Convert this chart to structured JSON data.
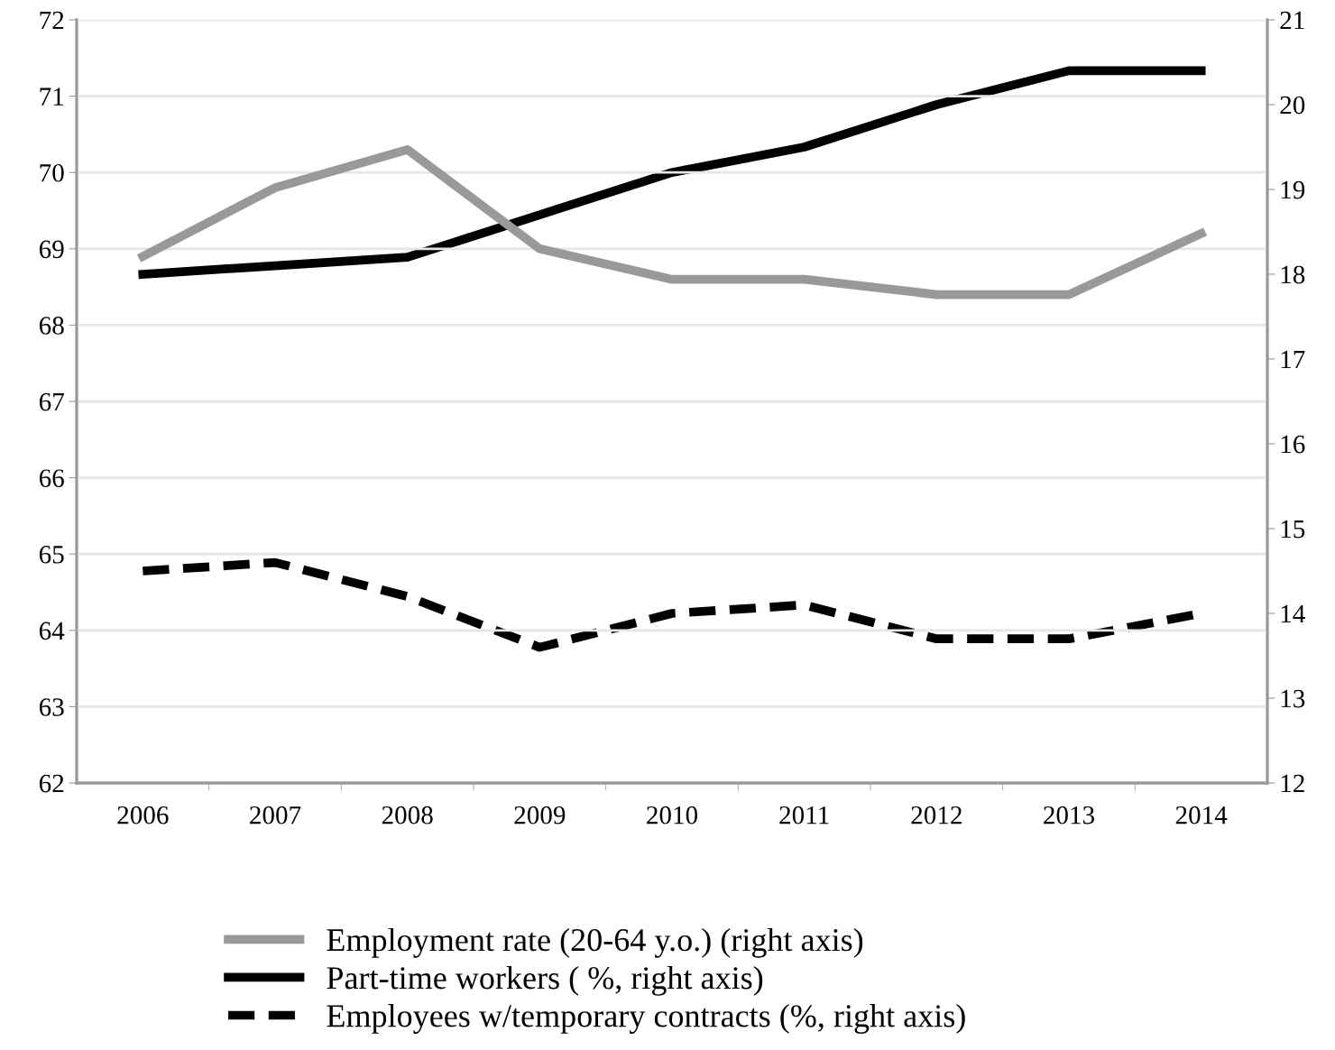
{
  "chart_data": {
    "type": "line",
    "categories": [
      "2006",
      "2007",
      "2008",
      "2009",
      "2010",
      "2011",
      "2012",
      "2013",
      "2014"
    ],
    "series": [
      {
        "name": "Employment rate (20-64 y.o.) (right axis)",
        "color": "#999999",
        "values": [
          68.9,
          69.8,
          70.3,
          69.0,
          68.6,
          68.6,
          68.4,
          68.4,
          69.2
        ],
        "line_style": "solid"
      },
      {
        "name": "Part-time workers ( %, right axis)",
        "color": "#000000",
        "values": [
          18.0,
          18.1,
          18.2,
          18.7,
          19.2,
          19.5,
          20.0,
          20.4,
          20.4
        ],
        "axis": "y2",
        "line_style": "solid"
      },
      {
        "name": "Employees w/temporary contracts (%, right axis)",
        "color": "#000000",
        "values": [
          14.5,
          14.6,
          14.2,
          13.6,
          14.0,
          14.1,
          13.7,
          13.7,
          14.0
        ],
        "axis": "y2",
        "line_style": "dashed"
      }
    ],
    "ylim": [
      62,
      72
    ],
    "yticks": [
      62,
      63,
      64,
      65,
      66,
      67,
      68,
      69,
      70,
      71,
      72
    ],
    "y2lim": [
      12,
      21
    ],
    "y2ticks": [
      12,
      13,
      14,
      15,
      16,
      17,
      18,
      19,
      20,
      21
    ],
    "grid": "y",
    "legend": "bottom",
    "marker": "none"
  }
}
